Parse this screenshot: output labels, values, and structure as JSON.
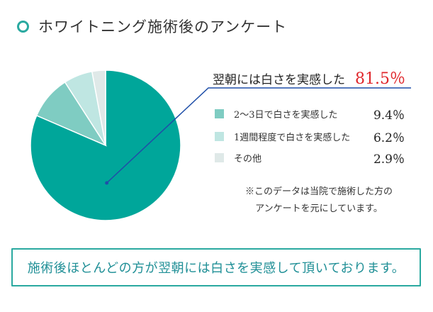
{
  "header": {
    "title": "ホワイトニング施術後のアンケート"
  },
  "chart_data": {
    "type": "pie",
    "slices": [
      {
        "label": "翌朝には白さを実感した",
        "value": 81.5,
        "value_text": "81.5％",
        "color": "#00a69a"
      },
      {
        "label": "2～3日で白さを実感した",
        "value": 9.4,
        "value_text": "9.4％",
        "color": "#7fccc2"
      },
      {
        "label": "1週間程度で白さを実感した",
        "value": 6.2,
        "value_text": "6.2％",
        "color": "#bfe6e2"
      },
      {
        "label": "その他",
        "value": 2.9,
        "value_text": "2.9％",
        "color": "#dfe9e8"
      }
    ],
    "start": "12 o'clock, clockwise",
    "highlight_color": "#e0262b",
    "callout_line_color": "#1f4fa8"
  },
  "note": {
    "line1": "※このデータは当院で施術した方の",
    "line2": "アンケートを元にしています。"
  },
  "summary": {
    "text": "施術後ほとんどの方が翌朝には白さを実感して頂いております。"
  },
  "colors": {
    "accent": "#2aa9a0",
    "summary_text": "#1f8f96"
  }
}
